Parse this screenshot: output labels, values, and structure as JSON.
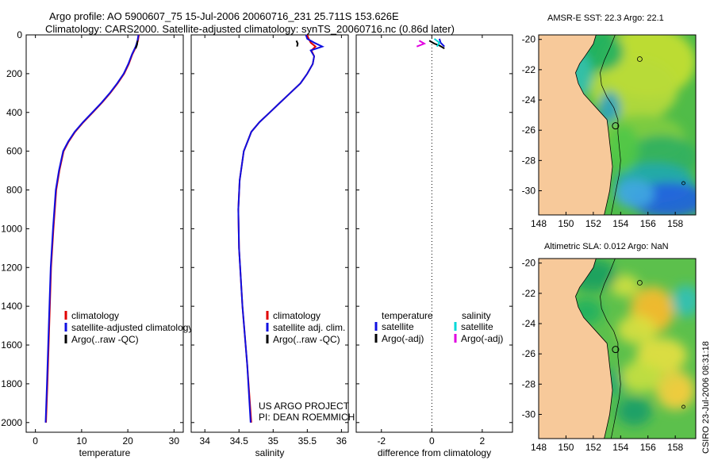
{
  "header": {
    "line1": "Argo profile: AO 5900607_75 15-Jul-2006 20060716_231 25.711S 153.626E",
    "line2": "Climatology: CARS2000. Satellite-adjusted climatology: synTS_20060716.nc (0.86d later)"
  },
  "stamp": "CSIRO 23-Jul-2006 08:31:18",
  "colors": {
    "climatology": "#e00000",
    "satellite": "#1010e0",
    "argo": "#000000",
    "satellite_salinity": "#00d8d8",
    "argo_adj_salinity": "#e000e0",
    "land": "#f7c99a"
  },
  "chart_data": [
    {
      "type": "line",
      "name": "temperature-panel",
      "xlabel": "temperature",
      "ylabel": "",
      "xlim": [
        -2,
        32
      ],
      "ylim": [
        2050,
        0
      ],
      "xticks": [
        0,
        10,
        20,
        30
      ],
      "xtick_labels": [
        "0",
        "10",
        "20",
        "30"
      ],
      "yticks": [
        0,
        200,
        400,
        600,
        800,
        1000,
        1200,
        1400,
        1600,
        1800,
        2000
      ],
      "ytick_labels": [
        "0",
        "200",
        "400",
        "600",
        "800",
        "1000",
        "1200",
        "1400",
        "1600",
        "1800",
        "2000"
      ],
      "legend": [
        "climatology",
        "satellite-adjusted climatology",
        "Argo(..raw -QC)"
      ],
      "series": [
        {
          "name": "climatology",
          "color": "climatology",
          "x": [
            22.4,
            22.2,
            21.8,
            21.0,
            20.2,
            19.2,
            17.8,
            16.2,
            14.4,
            12.4,
            10.4,
            8.6,
            7.2,
            6.1,
            5.2,
            4.5,
            3.9,
            3.4,
            3.0,
            2.6,
            2.3
          ],
          "depth": [
            0,
            30,
            60,
            100,
            150,
            200,
            250,
            300,
            350,
            400,
            450,
            500,
            550,
            600,
            700,
            800,
            1000,
            1200,
            1500,
            1800,
            2000
          ]
        },
        {
          "name": "satellite-adjusted climatology",
          "color": "satellite",
          "x": [
            22.3,
            22.1,
            21.7,
            20.9,
            20.1,
            19.1,
            17.7,
            16.1,
            14.3,
            12.3,
            10.3,
            8.5,
            7.1,
            6.0,
            5.1,
            4.4,
            3.8,
            3.3,
            2.9,
            2.5,
            2.2
          ],
          "depth": [
            0,
            30,
            60,
            100,
            150,
            200,
            250,
            300,
            350,
            400,
            450,
            500,
            550,
            600,
            700,
            800,
            1000,
            1200,
            1500,
            1800,
            2000
          ]
        },
        {
          "name": "Argo",
          "color": "argo",
          "x": [
            22.1,
            22.0,
            21.7
          ],
          "depth": [
            30,
            50,
            70
          ]
        }
      ]
    },
    {
      "type": "line",
      "name": "salinity-panel",
      "xlabel": "salinity",
      "xlim": [
        33.8,
        36.1
      ],
      "ylim": [
        2050,
        0
      ],
      "xticks": [
        34,
        34.5,
        35,
        35.5,
        36
      ],
      "xtick_labels": [
        "34",
        "34.5",
        "35",
        "35.5",
        "36"
      ],
      "legend": [
        "climatology",
        "satellite adj. clim.",
        "Argo(..raw -QC)"
      ],
      "series": [
        {
          "name": "climatology",
          "color": "climatology",
          "x": [
            35.5,
            35.52,
            35.55,
            35.62,
            35.56,
            35.6,
            35.58,
            35.5,
            35.4,
            35.25,
            35.1,
            34.95,
            34.8,
            34.68,
            34.57,
            34.51,
            34.49,
            34.5,
            34.55,
            34.62,
            34.68
          ],
          "depth": [
            0,
            20,
            40,
            60,
            80,
            110,
            150,
            200,
            250,
            300,
            350,
            400,
            450,
            500,
            600,
            750,
            900,
            1100,
            1400,
            1700,
            2000
          ]
        },
        {
          "name": "satellite adj. clim.",
          "color": "satellite",
          "x": [
            35.48,
            35.5,
            35.6,
            35.72,
            35.55,
            35.6,
            35.58,
            35.5,
            35.4,
            35.25,
            35.1,
            34.95,
            34.8,
            34.68,
            34.57,
            34.51,
            34.49,
            34.5,
            34.55,
            34.62,
            34.67
          ],
          "depth": [
            0,
            20,
            40,
            60,
            80,
            110,
            150,
            200,
            250,
            300,
            350,
            400,
            450,
            500,
            600,
            750,
            900,
            1100,
            1400,
            1700,
            2000
          ]
        },
        {
          "name": "Argo",
          "color": "argo",
          "x": [
            35.34,
            35.36,
            35.35
          ],
          "depth": [
            30,
            45,
            60
          ]
        }
      ],
      "annotation": [
        "US ARGO PROJECT",
        "PI: DEAN ROEMMICH"
      ]
    },
    {
      "type": "line",
      "name": "difference-panel",
      "xlabel": "difference from climatology",
      "xlim": [
        -3,
        3.2
      ],
      "ylim": [
        2050,
        0
      ],
      "xticks": [
        -2,
        0,
        2
      ],
      "xtick_labels": [
        "-2",
        "0",
        "2"
      ],
      "zero_line": 0,
      "legend_left_title": "temperature",
      "legend_right_title": "salinity",
      "legend_left": [
        "satellite",
        "Argo(-adj)"
      ],
      "legend_right": [
        "satellite",
        "Argo(-adj)"
      ],
      "series": [
        {
          "name": "temperature satellite",
          "color": "satellite",
          "x": [
            0.3,
            0.35,
            0.5
          ],
          "depth": [
            20,
            40,
            60
          ]
        },
        {
          "name": "temperature Argo(-adj)",
          "color": "argo",
          "x": [
            -0.1,
            0.1,
            0.3,
            0.5
          ],
          "depth": [
            30,
            45,
            55,
            70
          ]
        },
        {
          "name": "salinity satellite",
          "color": "satellite_salinity",
          "x": [
            0.1,
            0.3,
            0.2
          ],
          "depth": [
            20,
            40,
            60
          ]
        },
        {
          "name": "salinity Argo(-adj)",
          "color": "argo_adj_salinity",
          "x": [
            -0.5,
            -0.3,
            -0.6
          ],
          "depth": [
            30,
            45,
            60
          ]
        }
      ]
    },
    {
      "type": "heatmap",
      "name": "sst-map",
      "title": "AMSR-E SST: 22.3 Argo: 22.1",
      "xlim": [
        148,
        159.5
      ],
      "ylim": [
        -31.6,
        -19.7
      ],
      "xticks": [
        148,
        150,
        152,
        154,
        156,
        158
      ],
      "xtick_labels": [
        "148",
        "150",
        "152",
        "154",
        "156",
        "158"
      ],
      "yticks": [
        -20,
        -22,
        -24,
        -26,
        -28,
        -30
      ],
      "ytick_labels": [
        "-20",
        "-22",
        "-24",
        "-26",
        "-28",
        "-30"
      ],
      "float_position": [
        153.626,
        -25.711
      ]
    },
    {
      "type": "heatmap",
      "name": "sla-map",
      "title": "Altimetric SLA: 0.012 Argo: NaN",
      "xlim": [
        148,
        159.5
      ],
      "ylim": [
        -31.6,
        -19.7
      ],
      "xticks": [
        148,
        150,
        152,
        154,
        156,
        158
      ],
      "xtick_labels": [
        "148",
        "150",
        "152",
        "154",
        "156",
        "158"
      ],
      "yticks": [
        -20,
        -22,
        -24,
        -26,
        -28,
        -30
      ],
      "ytick_labels": [
        "-20",
        "-22",
        "-24",
        "-26",
        "-28",
        "-30"
      ],
      "float_position": [
        153.626,
        -25.711
      ]
    }
  ]
}
